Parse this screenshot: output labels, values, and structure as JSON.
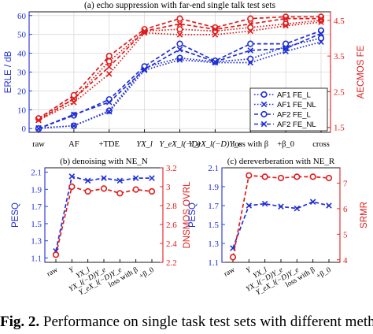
{
  "colors": {
    "blue": "#1f2fd6",
    "red": "#e01b1b",
    "axis": "#000000",
    "grid": "#d9d9d9"
  },
  "caption": {
    "label": "Fig. 2.",
    "text": "Performance on single task test sets with different meth"
  },
  "chart_data": [
    {
      "type": "line",
      "title": "(a) echo suppression with far-end single talk test sets",
      "categories": [
        "raw",
        "AF",
        "+TDE",
        "YX_l",
        "Y_eX_l(−D)",
        "Y_eX_l(−D)Y_e",
        "loss with β",
        "+β_0",
        "cross"
      ],
      "ylabel": "ERLE / dB",
      "y2label": "AECMOS FE",
      "ylim": [
        -2,
        62
      ],
      "y2lim": [
        1.36,
        4.74
      ],
      "yticks": [
        0,
        10,
        20,
        30,
        40,
        50,
        60
      ],
      "y2ticks": [
        1.5,
        2.5,
        3.5,
        4.5
      ],
      "grid": true,
      "legend_position": "right",
      "series": [
        {
          "name": "AF1 FE_L",
          "axis": "left",
          "marker": "circle",
          "dash": "dot",
          "values": [
            0,
            1.5,
            9.5,
            32.5,
            37.5,
            35.5,
            37,
            43.5,
            48
          ]
        },
        {
          "name": "AF1 FE_NL",
          "axis": "left",
          "marker": "x",
          "dash": "dot",
          "values": [
            0.3,
            1.5,
            9,
            31,
            36.5,
            35,
            35,
            41,
            46
          ]
        },
        {
          "name": "AF2 FE_L",
          "axis": "left",
          "marker": "circle",
          "dash": "dash",
          "values": [
            0,
            7,
            15.5,
            33,
            45,
            36,
            45,
            45,
            52
          ]
        },
        {
          "name": "AF2 FE_NL",
          "axis": "left",
          "marker": "x",
          "dash": "dash",
          "values": [
            0,
            7.5,
            14,
            31.5,
            42,
            35.5,
            41.5,
            42.5,
            50.5
          ]
        },
        {
          "axis": "right",
          "marker": "circle",
          "dash": "dot",
          "values": [
            1.75,
            2.3,
            3.35,
            4.2,
            4.25,
            4.2,
            4.3,
            4.4,
            4.5
          ]
        },
        {
          "axis": "right",
          "marker": "x",
          "dash": "dot",
          "values": [
            1.7,
            2.2,
            3.0,
            4.15,
            4.1,
            4.1,
            4.2,
            4.35,
            4.45
          ]
        },
        {
          "axis": "right",
          "marker": "circle",
          "dash": "dash",
          "values": [
            1.75,
            2.4,
            3.5,
            4.25,
            4.55,
            4.3,
            4.55,
            4.6,
            4.6
          ]
        },
        {
          "axis": "right",
          "marker": "x",
          "dash": "dash",
          "values": [
            1.7,
            2.3,
            3.2,
            4.2,
            4.4,
            4.25,
            4.4,
            4.55,
            4.55
          ]
        }
      ]
    },
    {
      "type": "line",
      "title": "(b) denoising with NE_N",
      "categories": [
        "raw",
        "Y",
        "YX_l",
        "YX_l(−D)Y_e",
        "Y_eX_l(−D)Y_e",
        "loss with β",
        "+β_0"
      ],
      "ylabel": "PESQ",
      "y2label": "DNSMOS OVRL",
      "ylim": [
        1.05,
        2.15
      ],
      "y2lim": [
        2.2,
        3.2
      ],
      "yticks": [
        1.1,
        1.3,
        1.5,
        1.7,
        1.9,
        2.1
      ],
      "y2ticks": [
        2.2,
        2.4,
        2.6,
        2.8,
        3,
        3.2
      ],
      "grid": false,
      "series": [
        {
          "axis": "left",
          "marker": "x",
          "dash": "dash",
          "values": [
            1.18,
            2.05,
            2.0,
            2.03,
            2.0,
            2.03,
            2.03
          ]
        },
        {
          "axis": "right",
          "marker": "circle",
          "dash": "dash",
          "values": [
            2.28,
            3.0,
            2.95,
            2.98,
            2.93,
            2.97,
            2.95
          ]
        }
      ]
    },
    {
      "type": "line",
      "title": "(c) dereverberation with NE_R",
      "categories": [
        "raw",
        "Y",
        "YX_l",
        "YX_l(−D)Y_e",
        "Y_eX_l(−D)Y_e",
        "loss with β",
        "+β_0"
      ],
      "ylabel": "PESQ",
      "y2label": "SRMR",
      "ylim": [
        1.1,
        2.1
      ],
      "y2lim": [
        3.9,
        7.6
      ],
      "yticks": [
        1.1,
        1.3,
        1.5,
        1.7,
        1.9,
        2.1
      ],
      "y2ticks": [
        4,
        5,
        6,
        7
      ],
      "grid": false,
      "series": [
        {
          "axis": "left",
          "marker": "x",
          "dash": "dash",
          "values": [
            1.25,
            1.7,
            1.72,
            1.69,
            1.67,
            1.74,
            1.7
          ]
        },
        {
          "axis": "right",
          "marker": "circle",
          "dash": "dash",
          "values": [
            4.1,
            7.3,
            7.25,
            7.2,
            7.25,
            7.25,
            7.2
          ]
        }
      ]
    }
  ]
}
